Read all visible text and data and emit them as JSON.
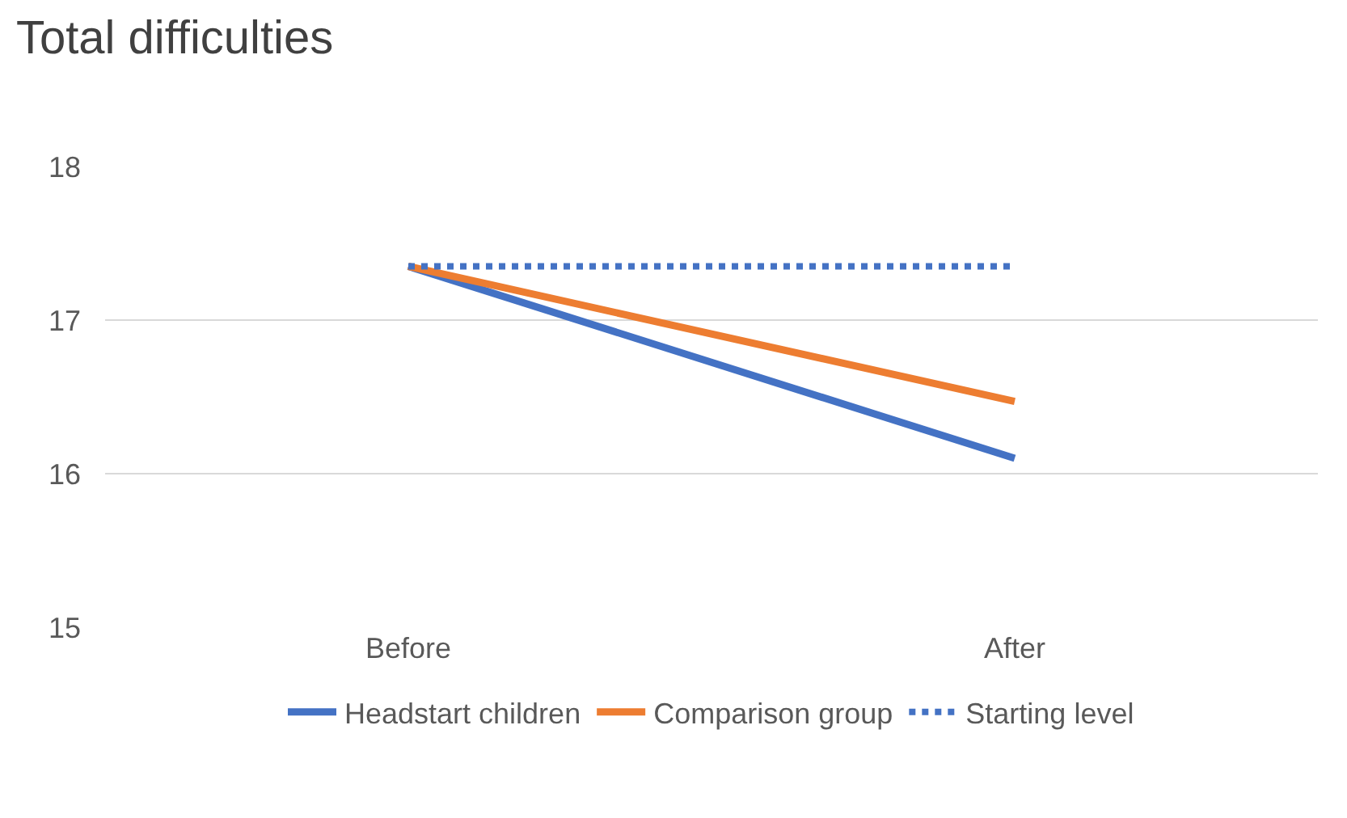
{
  "chart_data": {
    "type": "line",
    "title": "Total difficulties",
    "categories": [
      "Before",
      "After"
    ],
    "series": [
      {
        "name": "Headstart children",
        "color": "#4472c4",
        "values": [
          17.35,
          16.1
        ],
        "line_style": "solid"
      },
      {
        "name": "Comparison group",
        "color": "#ed7d31",
        "values": [
          17.35,
          16.47
        ],
        "line_style": "solid"
      },
      {
        "name": "Starting level",
        "color": "#4472c4",
        "values": [
          17.35,
          17.35
        ],
        "line_style": "dotted"
      }
    ],
    "ylim": [
      15,
      18
    ],
    "yticks": [
      15,
      16,
      17,
      18
    ],
    "grid": "y",
    "legend": "bottom",
    "marker": "none"
  }
}
